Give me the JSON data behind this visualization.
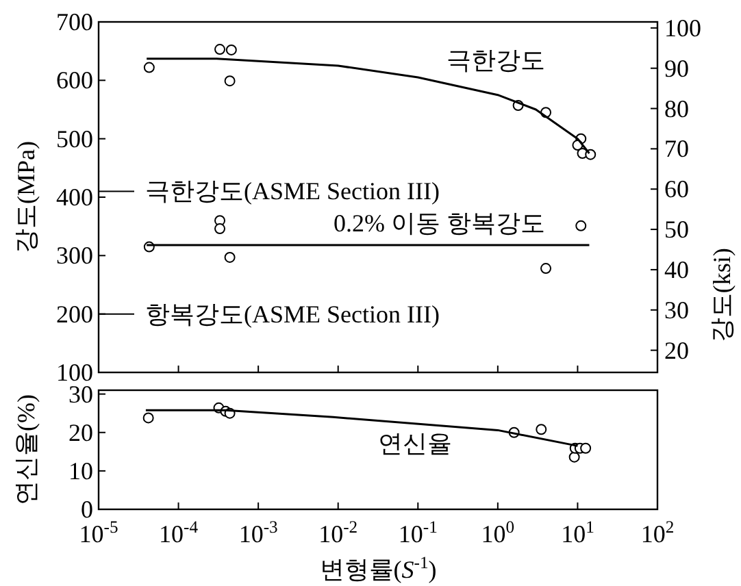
{
  "chart_data": [
    {
      "type": "scatter",
      "ylabel": "강도(MPa)",
      "y2label": "강도(ksi)",
      "log": "x",
      "marker": "circle",
      "tick_labels": "y",
      "xlim": [
        1e-05,
        100
      ],
      "xticks": [
        {
          "value": 1e-05,
          "label": null
        },
        {
          "value": 0.0001,
          "label": null
        },
        {
          "value": 0.001,
          "label": null
        },
        {
          "value": 0.01,
          "label": null
        },
        {
          "value": 0.1,
          "label": null
        },
        {
          "value": 1,
          "label": null
        },
        {
          "value": 10,
          "label": null
        },
        {
          "value": 100,
          "label": null
        }
      ],
      "ylim": [
        100,
        700
      ],
      "yticks": [
        100,
        200,
        300,
        400,
        500,
        600,
        700
      ],
      "y2lim": [
        14.5,
        101.5
      ],
      "y2ticks": [
        20,
        30,
        40,
        50,
        60,
        70,
        80,
        90,
        100
      ],
      "series": [
        {
          "type": "scatter",
          "color": "#000000",
          "x": [
            4.3e-05,
            0.00033,
            0.00046,
            0.00044,
            1.8,
            4,
            11,
            10,
            11.5,
            14.5
          ],
          "values": [
            622,
            653,
            652,
            599,
            557,
            545,
            500,
            489,
            475,
            473
          ]
        },
        {
          "type": "line",
          "name": "극한강도",
          "color": "#000000",
          "marker": "none",
          "x": [
            4e-05,
            0.0003,
            0.001,
            0.01,
            0.1,
            1,
            3,
            10,
            14
          ],
          "values": [
            637,
            637,
            633,
            625,
            605,
            575,
            550,
            500,
            475
          ]
        },
        {
          "type": "scatter",
          "color": "#000000",
          "x": [
            4.3e-05,
            0.00033,
            0.00033,
            0.00044,
            4,
            11
          ],
          "values": [
            315,
            360,
            346,
            297,
            278,
            351
          ]
        },
        {
          "type": "line",
          "name": "0.2% 이동 항복강도",
          "color": "#000000",
          "marker": "none",
          "x": [
            4e-05,
            14
          ],
          "values": [
            318,
            318
          ]
        }
      ],
      "ref_lines": [
        {
          "axis": "y",
          "value": 410,
          "label": "극한강도(ASME Section III)"
        },
        {
          "axis": "y",
          "value": 200,
          "label": "항복강도(ASME Section III)"
        }
      ]
    },
    {
      "type": "scatter",
      "ylabel": "연신율(%)",
      "xlabel": "변형률(*S*$^{-1}$)",
      "log": "x",
      "marker": "circle",
      "xlim": [
        1e-05,
        100
      ],
      "xticks": [
        {
          "value": 1e-05,
          "label": "10$^{-5}$"
        },
        {
          "value": 0.0001,
          "label": "10$^{-4}$"
        },
        {
          "value": 0.001,
          "label": "10$^{-3}$"
        },
        {
          "value": 0.01,
          "label": "10$^{-2}$"
        },
        {
          "value": 0.1,
          "label": "10$^{-1}$"
        },
        {
          "value": 1,
          "label": "10$^{0}$"
        },
        {
          "value": 10,
          "label": "10$^{1}$"
        },
        {
          "value": 100,
          "label": "10$^{2}$"
        }
      ],
      "ylim": [
        0,
        31
      ],
      "yticks": [
        0,
        10,
        20,
        30
      ],
      "series": [
        {
          "type": "scatter",
          "color": "#000000",
          "x": [
            4.2e-05,
            0.00032,
            0.00039,
            0.00044,
            1.6,
            3.5,
            9.1,
            9.3,
            10.7,
            12.6
          ],
          "values": [
            23.8,
            26.4,
            25.5,
            25,
            20,
            20.8,
            13.6,
            15.9,
            15.9,
            15.9
          ]
        },
        {
          "type": "line",
          "name": "연신율",
          "color": "#000000",
          "marker": "none",
          "x": [
            3.9e-05,
            0.00039,
            0.0087,
            1,
            10
          ],
          "values": [
            25.8,
            25.8,
            24,
            20.6,
            16.5
          ]
        }
      ]
    }
  ]
}
